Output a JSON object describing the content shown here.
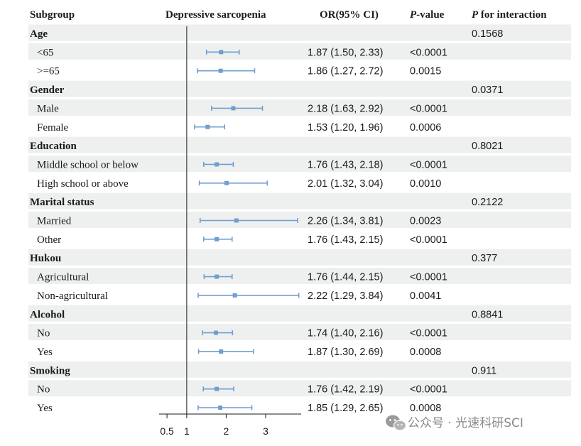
{
  "chart_data": {
    "type": "forest",
    "columns": {
      "subgroup": "Subgroup",
      "outcome": "Depressive sarcopenia",
      "or_ci": "OR(95% CI)",
      "p_value_italic": "P",
      "p_value_rest": "-value",
      "p_interaction_italic": "P",
      "p_interaction_rest": " for interaction"
    },
    "xticks": [
      "0.5",
      "1",
      "2",
      "3"
    ],
    "xlim": [
      0.3,
      3.9
    ],
    "reference_line": 1,
    "colors": {
      "band": "#eef0f0",
      "marker": "#6f9fcf",
      "line": "#1a1a1a"
    },
    "groups": [
      {
        "name": "Age",
        "p_interaction": "0.1568",
        "rows": [
          {
            "label": "<65",
            "or": 1.87,
            "lo": 1.5,
            "hi": 2.33,
            "or_ci": "1.87 (1.50, 2.33)",
            "p": "<0.0001"
          },
          {
            "label": ">=65",
            "or": 1.86,
            "lo": 1.27,
            "hi": 2.72,
            "or_ci": "1.86 (1.27, 2.72)",
            "p": "0.0015"
          }
        ]
      },
      {
        "name": "Gender",
        "p_interaction": "0.0371",
        "rows": [
          {
            "label": "Male",
            "or": 2.18,
            "lo": 1.63,
            "hi": 2.92,
            "or_ci": "2.18 (1.63, 2.92)",
            "p": "<0.0001"
          },
          {
            "label": "Female",
            "or": 1.53,
            "lo": 1.2,
            "hi": 1.96,
            "or_ci": "1.53 (1.20, 1.96)",
            "p": "0.0006"
          }
        ]
      },
      {
        "name": "Education",
        "p_interaction": "0.8021",
        "rows": [
          {
            "label": "Middle school or below",
            "or": 1.76,
            "lo": 1.43,
            "hi": 2.18,
            "or_ci": "1.76 (1.43, 2.18)",
            "p": "<0.0001"
          },
          {
            "label": "High school or above",
            "or": 2.01,
            "lo": 1.32,
            "hi": 3.04,
            "or_ci": "2.01 (1.32, 3.04)",
            "p": "0.0010"
          }
        ]
      },
      {
        "name": "Marital status",
        "p_interaction": "0.2122",
        "rows": [
          {
            "label": "Married",
            "or": 2.26,
            "lo": 1.34,
            "hi": 3.81,
            "or_ci": "2.26 (1.34, 3.81)",
            "p": "0.0023"
          },
          {
            "label": "Other",
            "or": 1.76,
            "lo": 1.43,
            "hi": 2.15,
            "or_ci": "1.76 (1.43, 2.15)",
            "p": "<0.0001"
          }
        ]
      },
      {
        "name": "Hukou",
        "p_interaction": "0.377",
        "rows": [
          {
            "label": "Agricultural",
            "or": 1.76,
            "lo": 1.44,
            "hi": 2.15,
            "or_ci": "1.76 (1.44, 2.15)",
            "p": "<0.0001"
          },
          {
            "label": "Non-agricultural",
            "or": 2.22,
            "lo": 1.29,
            "hi": 3.84,
            "or_ci": "2.22 (1.29, 3.84)",
            "p": "0.0041"
          }
        ]
      },
      {
        "name": "Alcohol",
        "p_interaction": "0.8841",
        "rows": [
          {
            "label": "No",
            "or": 1.74,
            "lo": 1.4,
            "hi": 2.16,
            "or_ci": "1.74 (1.40, 2.16)",
            "p": "<0.0001"
          },
          {
            "label": "Yes",
            "or": 1.87,
            "lo": 1.3,
            "hi": 2.69,
            "or_ci": "1.87 (1.30, 2.69)",
            "p": "0.0008"
          }
        ]
      },
      {
        "name": "Smoking",
        "p_interaction": "0.911",
        "rows": [
          {
            "label": "No",
            "or": 1.76,
            "lo": 1.42,
            "hi": 2.19,
            "or_ci": "1.76 (1.42, 2.19)",
            "p": "<0.0001"
          },
          {
            "label": "Yes",
            "or": 1.85,
            "lo": 1.29,
            "hi": 2.65,
            "or_ci": "1.85 (1.29, 2.65)",
            "p": "0.0008"
          }
        ]
      }
    ]
  },
  "watermark": {
    "text": "公众号 · 光速科研SCI",
    "icon": "wechat-icon"
  }
}
